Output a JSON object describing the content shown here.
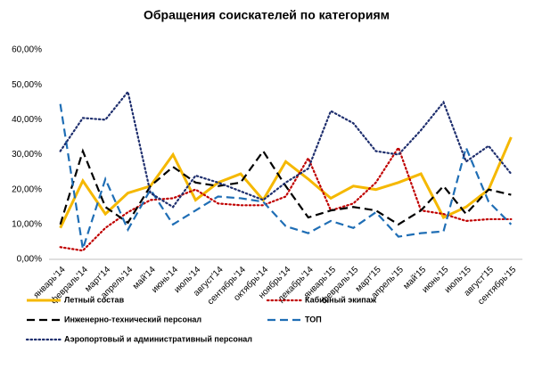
{
  "chart_data": {
    "type": "line",
    "title": "Обращения соискателей по категориям",
    "categories": [
      "январь'14",
      "февраль'14",
      "март'14",
      "апрель'14",
      "май'14",
      "июнь'14",
      "июль'14",
      "август'14",
      "сентябрь'14",
      "октябрь'14",
      "ноябрь'14",
      "декабрь'14",
      "январь'15",
      "февраль'15",
      "март'15",
      "апрель'15",
      "май'15",
      "июнь'15",
      "июль'15",
      "август'15",
      "сентябрь'15"
    ],
    "ylim": [
      0,
      60
    ],
    "yticks": [
      {
        "value": 0,
        "label": "0,00%"
      },
      {
        "value": 10,
        "label": "10,00%"
      },
      {
        "value": 20,
        "label": "20,00%"
      },
      {
        "value": 30,
        "label": "30,00%"
      },
      {
        "value": 40,
        "label": "40,00%"
      },
      {
        "value": 50,
        "label": "50,00%"
      },
      {
        "value": 60,
        "label": "60,00%"
      }
    ],
    "grid": false,
    "series": [
      {
        "name": "Летный состав",
        "color": "#f5b800",
        "dash": "solid",
        "values": [
          9,
          22.5,
          13,
          19,
          21,
          30,
          17,
          22,
          24.5,
          17,
          28,
          23,
          17.5,
          21,
          20,
          22,
          24.5,
          12,
          15,
          20,
          35
        ]
      },
      {
        "name": "Кабинный экипаж",
        "color": "#c00000",
        "dash": "dotted",
        "values": [
          3.5,
          2.5,
          9,
          13.5,
          17,
          17.5,
          20,
          16,
          15.5,
          15.5,
          18,
          29,
          14,
          16,
          22,
          32,
          14,
          13,
          11,
          11.5,
          11.5
        ]
      },
      {
        "name": "Инженерно-технический персонал",
        "color": "#000000",
        "dash": "dashed",
        "values": [
          10,
          31,
          15,
          10.5,
          21,
          26.5,
          22,
          21,
          22,
          31,
          21,
          12,
          14,
          15,
          14,
          10,
          14,
          21,
          13,
          20,
          18.5
        ]
      },
      {
        "name": "ТОП",
        "color": "#1f6eb5",
        "dash": "dashed",
        "values": [
          44.5,
          3,
          23,
          8.5,
          20,
          10,
          14,
          18,
          17.5,
          16.5,
          9.5,
          7.5,
          11,
          9,
          13.5,
          6.5,
          7.5,
          8,
          32,
          16.5,
          10
        ]
      },
      {
        "name": "Аэропортовый и административный персонал",
        "color": "#1f2f6e",
        "dash": "dotted",
        "values": [
          31,
          40.5,
          40,
          48,
          19,
          15,
          24,
          22,
          19.5,
          17,
          22,
          26,
          42.5,
          39,
          31,
          30,
          37,
          45,
          28,
          32.5,
          24.5
        ]
      }
    ]
  }
}
